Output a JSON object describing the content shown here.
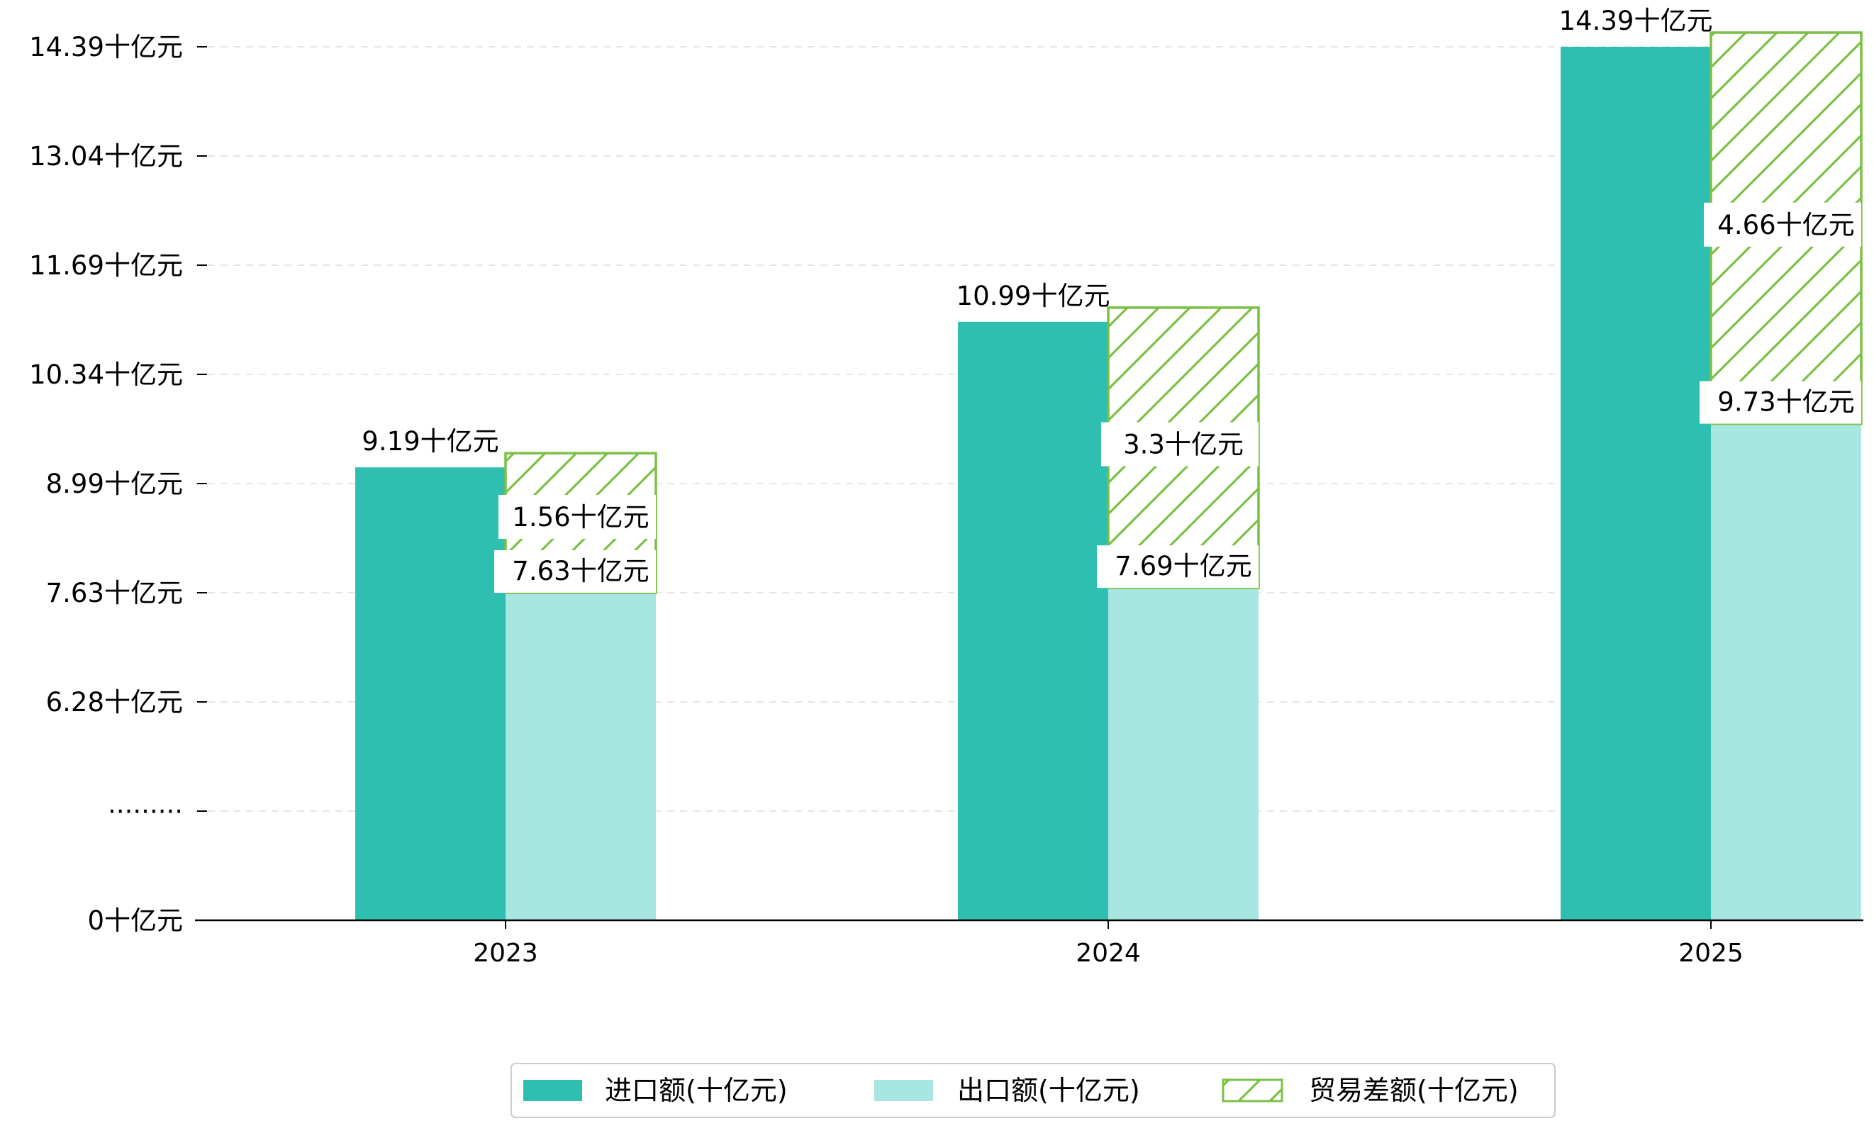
{
  "chart_data": {
    "type": "bar",
    "categories": [
      "2023",
      "2024",
      "2025"
    ],
    "series": [
      {
        "name": "进口额(十亿元)",
        "values": [
          9.19,
          10.99,
          14.39
        ],
        "color": "#2ebfb0",
        "labels": [
          "9.19十亿元",
          "10.99十亿元",
          "14.39十亿元"
        ]
      },
      {
        "name": "出口额(十亿元)",
        "values": [
          7.63,
          7.69,
          9.73
        ],
        "color": "#a8e7e1",
        "labels": [
          "7.63十亿元",
          "7.69十亿元",
          "9.73十亿元"
        ]
      },
      {
        "name": "贸易差额(十亿元)",
        "values": [
          1.56,
          3.3,
          4.66
        ],
        "color": "#7ac143",
        "pattern": "hatch",
        "labels": [
          "1.56十亿元",
          "3.3十亿元",
          "4.66十亿元"
        ]
      }
    ],
    "yticks": [
      "0十亿元",
      "·········",
      "6.28十亿元",
      "7.63十亿元",
      "8.99十亿元",
      "10.34十亿元",
      "11.69十亿元",
      "13.04十亿元",
      "14.39十亿元"
    ],
    "ytick_values": [
      0,
      4.93,
      6.28,
      7.63,
      8.99,
      10.34,
      11.69,
      13.04,
      14.39
    ],
    "axis_break": true,
    "ylim": [
      0,
      14.39
    ],
    "grid": true,
    "legend_position": "bottom-center"
  }
}
